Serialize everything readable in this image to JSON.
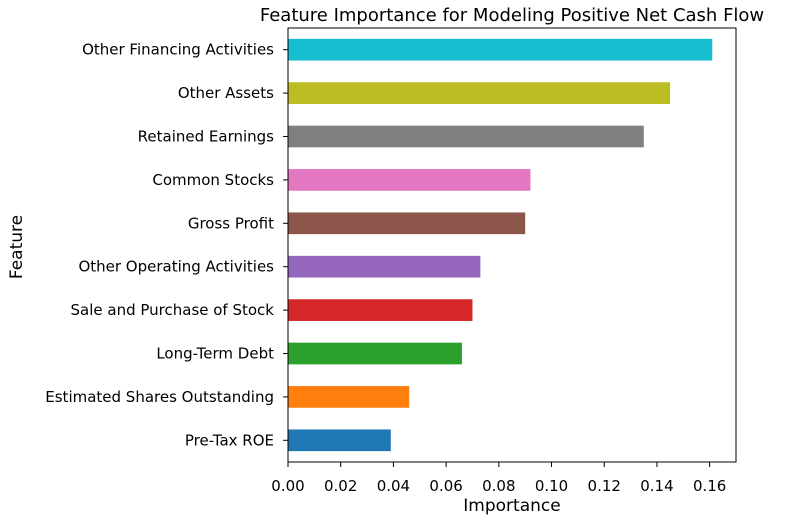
{
  "chart_data": {
    "type": "bar",
    "orientation": "horizontal",
    "title": "Feature Importance for Modeling Positive Net Cash Flow",
    "xlabel": "Importance",
    "ylabel": "Feature",
    "xlim": [
      0,
      0.17
    ],
    "xticks": [
      "0.00",
      "0.02",
      "0.04",
      "0.06",
      "0.08",
      "0.10",
      "0.12",
      "0.14",
      "0.16"
    ],
    "xtick_values": [
      0,
      0.02,
      0.04,
      0.06,
      0.08,
      0.1,
      0.12,
      0.14,
      0.16
    ],
    "categories": [
      "Pre-Tax ROE",
      "Estimated Shares Outstanding",
      "Long-Term Debt",
      "Sale and Purchase of Stock",
      "Other Operating Activities",
      "Gross Profit",
      "Common Stocks",
      "Retained Earnings",
      "Other Assets",
      "Other Financing Activities"
    ],
    "values": [
      0.039,
      0.046,
      0.066,
      0.07,
      0.073,
      0.09,
      0.092,
      0.135,
      0.145,
      0.161
    ],
    "colors": [
      "#1f77b4",
      "#ff7f0e",
      "#2ca02c",
      "#d62728",
      "#9467bd",
      "#8c564b",
      "#e377c2",
      "#7f7f7f",
      "#bcbd22",
      "#17becf"
    ],
    "grid": false,
    "legend": "none"
  }
}
